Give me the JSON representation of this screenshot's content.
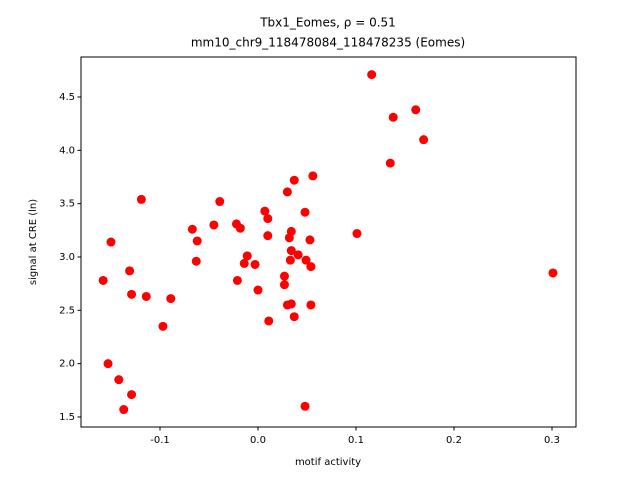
{
  "chart_data": {
    "type": "scatter",
    "title": "Tbx1_Eomes, ρ = 0.51",
    "subtitle": "mm10_chr9_118478084_118478235 (Eomes)",
    "x_label": "motif activity",
    "y_label": "signal at CRE (ln)",
    "color": "#ff0000",
    "xlim": [
      -0.1806,
      0.3245
    ],
    "ylim": [
      1.406,
      4.875
    ],
    "xticks": [
      -0.1,
      {
        "value": 0,
        "label": "0.0"
      },
      0.1,
      0.2,
      0.3
    ],
    "yticks": [
      1.5,
      {
        "value": 2,
        "label": "2.0"
      },
      2.5,
      {
        "value": 3,
        "label": "3.0"
      },
      3.5,
      {
        "value": 4,
        "label": "4.0"
      },
      4.5
    ],
    "x": [
      0.116,
      0.161,
      0.138,
      0.169,
      0.135,
      0.056,
      0.037,
      0.03,
      -0.119,
      -0.039,
      0.048,
      0.007,
      0.01,
      -0.045,
      -0.022,
      -0.018,
      -0.067,
      0.034,
      0.101,
      0.01,
      0.032,
      -0.062,
      0.053,
      -0.15,
      0.034,
      0.041,
      -0.011,
      -0.063,
      0.033,
      0.049,
      -0.014,
      -0.003,
      0.054,
      -0.131,
      0.301,
      0.027,
      -0.158,
      -0.021,
      0.027,
      0.0,
      -0.129,
      -0.114,
      -0.089,
      0.034,
      0.03,
      0.054,
      0.037,
      0.011,
      -0.097,
      -0.153,
      -0.142,
      -0.129,
      -0.137,
      0.048
    ],
    "values": [
      4.71,
      4.38,
      4.31,
      4.1,
      3.88,
      3.76,
      3.72,
      3.61,
      3.54,
      3.52,
      3.42,
      3.43,
      3.36,
      3.3,
      3.31,
      3.27,
      3.26,
      3.24,
      3.22,
      3.2,
      3.18,
      3.15,
      3.16,
      3.14,
      3.06,
      3.02,
      3.01,
      2.96,
      2.97,
      2.97,
      2.94,
      2.93,
      2.91,
      2.87,
      2.85,
      2.82,
      2.78,
      2.78,
      2.74,
      2.69,
      2.65,
      2.63,
      2.61,
      2.56,
      2.55,
      2.55,
      2.44,
      2.4,
      2.35,
      2.0,
      1.85,
      1.71,
      1.57,
      1.6
    ]
  }
}
